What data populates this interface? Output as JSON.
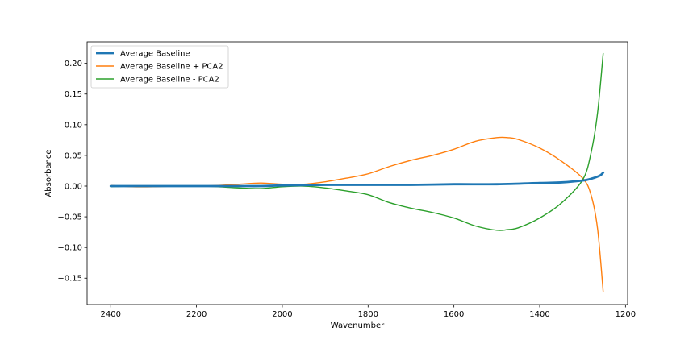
{
  "chart_data": {
    "type": "line",
    "title": "",
    "xlabel": "Wavenumber",
    "ylabel": "Absorbance",
    "xlim": [
      2455,
      1195
    ],
    "ylim": [
      -0.193,
      0.235
    ],
    "x_inverted": true,
    "xticks": [
      2400,
      2200,
      2000,
      1800,
      1600,
      1400,
      1200
    ],
    "xtick_labels": [
      "2400",
      "2200",
      "2000",
      "1800",
      "1600",
      "1400",
      "1200"
    ],
    "yticks": [
      0.2,
      0.15,
      0.1,
      0.05,
      0.0,
      -0.05,
      -0.1,
      -0.15
    ],
    "ytick_labels": [
      "0.20",
      "0.15",
      "0.10",
      "0.05",
      "0.00",
      "−0.05",
      "−0.10",
      "−0.15"
    ],
    "grid": false,
    "legend_position": "top-left",
    "series": [
      {
        "name": "Average Baseline",
        "color": "#1f77b4",
        "x": [
          2400,
          2300,
          2200,
          2100,
          2050,
          2000,
          1900,
          1800,
          1700,
          1600,
          1500,
          1400,
          1350,
          1300,
          1280,
          1260,
          1252
        ],
        "y": [
          0.0,
          0.0,
          0.0,
          0.0,
          0.0,
          0.001,
          0.002,
          0.002,
          0.002,
          0.003,
          0.003,
          0.005,
          0.006,
          0.009,
          0.012,
          0.017,
          0.022
        ]
      },
      {
        "name": "Average Baseline + PCA2",
        "color": "#ff7f0e",
        "x": [
          2400,
          2350,
          2300,
          2250,
          2200,
          2150,
          2100,
          2050,
          2000,
          1950,
          1900,
          1850,
          1800,
          1750,
          1700,
          1650,
          1600,
          1550,
          1500,
          1475,
          1450,
          1400,
          1350,
          1300,
          1280,
          1265,
          1252
        ],
        "y": [
          0.001,
          -0.001,
          -0.001,
          0.0,
          0.0,
          0.001,
          0.003,
          0.005,
          0.003,
          0.003,
          0.007,
          0.013,
          0.02,
          0.032,
          0.042,
          0.05,
          0.06,
          0.073,
          0.079,
          0.079,
          0.076,
          0.062,
          0.041,
          0.013,
          -0.015,
          -0.07,
          -0.172
        ]
      },
      {
        "name": "Average Baseline - PCA2",
        "color": "#2ca02c",
        "x": [
          2400,
          2350,
          2300,
          2250,
          2200,
          2150,
          2100,
          2050,
          2000,
          1950,
          1900,
          1850,
          1800,
          1750,
          1700,
          1650,
          1600,
          1550,
          1500,
          1475,
          1450,
          1400,
          1350,
          1300,
          1280,
          1265,
          1252
        ],
        "y": [
          -0.001,
          0.0,
          0.0,
          0.0,
          0.0,
          -0.001,
          -0.003,
          -0.004,
          -0.001,
          0.0,
          -0.003,
          -0.008,
          -0.014,
          -0.027,
          -0.036,
          -0.043,
          -0.052,
          -0.065,
          -0.072,
          -0.071,
          -0.068,
          -0.052,
          -0.028,
          0.01,
          0.055,
          0.12,
          0.216
        ]
      }
    ]
  }
}
